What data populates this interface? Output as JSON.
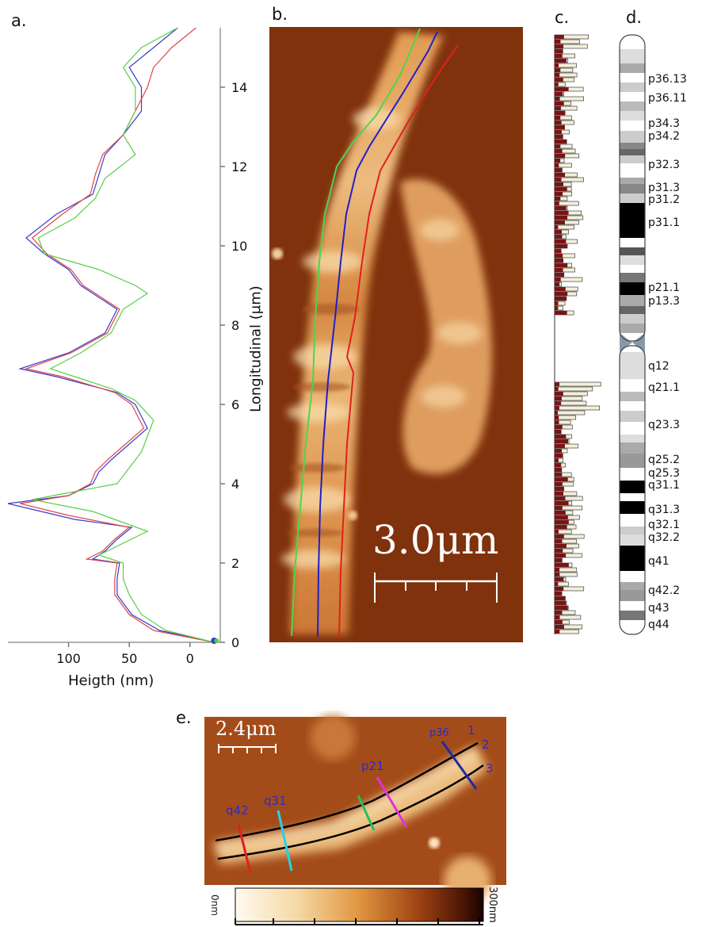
{
  "panels": {
    "a": "a.",
    "b": "b.",
    "c": "c.",
    "d": "d.",
    "e": "e."
  },
  "chart_data": {
    "type": "line",
    "xlabel": "Heigth (nm)",
    "ylabel": "Longitudinal (μm)",
    "x_reversed": true,
    "xlim": [
      150,
      -25
    ],
    "ylim": [
      0,
      15.5
    ],
    "xticks": [
      "100",
      "50",
      "0"
    ],
    "yticks": [
      "0",
      "2",
      "4",
      "6",
      "8",
      "10",
      "12",
      "14"
    ],
    "series": [
      {
        "color": "#3a3acc",
        "points": [
          [
            -20,
            0
          ],
          [
            25,
            0.3
          ],
          [
            48,
            0.7
          ],
          [
            60,
            1.2
          ],
          [
            60,
            1.6
          ],
          [
            58,
            2.0
          ],
          [
            80,
            2.1
          ],
          [
            70,
            2.3
          ],
          [
            60,
            2.6
          ],
          [
            48,
            2.9
          ],
          [
            95,
            3.1
          ],
          [
            150,
            3.5
          ],
          [
            100,
            3.7
          ],
          [
            80,
            4.0
          ],
          [
            75,
            4.3
          ],
          [
            65,
            4.6
          ],
          [
            35,
            5.4
          ],
          [
            45,
            6.0
          ],
          [
            60,
            6.3
          ],
          [
            110,
            6.7
          ],
          [
            140,
            6.9
          ],
          [
            100,
            7.3
          ],
          [
            70,
            7.8
          ],
          [
            60,
            8.4
          ],
          [
            80,
            8.8
          ],
          [
            90,
            9.0
          ],
          [
            100,
            9.4
          ],
          [
            120,
            9.8
          ],
          [
            135,
            10.2
          ],
          [
            110,
            10.8
          ],
          [
            80,
            11.3
          ],
          [
            75,
            11.8
          ],
          [
            70,
            12.3
          ],
          [
            55,
            12.8
          ],
          [
            40,
            13.4
          ],
          [
            40,
            14.0
          ],
          [
            50,
            14.5
          ],
          [
            30,
            15.0
          ],
          [
            10,
            15.5
          ]
        ]
      },
      {
        "color": "#e04545",
        "points": [
          [
            -20,
            0
          ],
          [
            30,
            0.3
          ],
          [
            50,
            0.7
          ],
          [
            62,
            1.2
          ],
          [
            62,
            1.6
          ],
          [
            60,
            2.0
          ],
          [
            85,
            2.1
          ],
          [
            72,
            2.3
          ],
          [
            62,
            2.6
          ],
          [
            50,
            2.9
          ],
          [
            100,
            3.2
          ],
          [
            140,
            3.5
          ],
          [
            100,
            3.7
          ],
          [
            82,
            4.0
          ],
          [
            78,
            4.3
          ],
          [
            68,
            4.6
          ],
          [
            38,
            5.4
          ],
          [
            48,
            6.0
          ],
          [
            62,
            6.3
          ],
          [
            105,
            6.7
          ],
          [
            135,
            6.9
          ],
          [
            98,
            7.3
          ],
          [
            68,
            7.8
          ],
          [
            58,
            8.4
          ],
          [
            78,
            8.8
          ],
          [
            88,
            9.0
          ],
          [
            98,
            9.4
          ],
          [
            118,
            9.8
          ],
          [
            130,
            10.2
          ],
          [
            105,
            10.8
          ],
          [
            82,
            11.3
          ],
          [
            78,
            11.8
          ],
          [
            72,
            12.3
          ],
          [
            55,
            12.8
          ],
          [
            45,
            13.4
          ],
          [
            35,
            14.0
          ],
          [
            30,
            14.5
          ],
          [
            15,
            15.0
          ],
          [
            -5,
            15.5
          ]
        ]
      },
      {
        "color": "#55d045",
        "points": [
          [
            -20,
            0
          ],
          [
            20,
            0.3
          ],
          [
            40,
            0.7
          ],
          [
            50,
            1.2
          ],
          [
            55,
            1.6
          ],
          [
            55,
            2.0
          ],
          [
            75,
            2.2
          ],
          [
            55,
            2.5
          ],
          [
            35,
            2.8
          ],
          [
            80,
            3.3
          ],
          [
            130,
            3.6
          ],
          [
            95,
            3.8
          ],
          [
            60,
            4.0
          ],
          [
            50,
            4.4
          ],
          [
            40,
            4.8
          ],
          [
            30,
            5.6
          ],
          [
            45,
            6.1
          ],
          [
            65,
            6.4
          ],
          [
            95,
            6.7
          ],
          [
            115,
            6.9
          ],
          [
            90,
            7.3
          ],
          [
            65,
            7.8
          ],
          [
            55,
            8.4
          ],
          [
            35,
            8.8
          ],
          [
            45,
            9.0
          ],
          [
            75,
            9.4
          ],
          [
            120,
            9.8
          ],
          [
            125,
            10.2
          ],
          [
            95,
            10.7
          ],
          [
            78,
            11.2
          ],
          [
            70,
            11.7
          ],
          [
            45,
            12.3
          ],
          [
            55,
            12.8
          ],
          [
            45,
            13.4
          ],
          [
            45,
            14.0
          ],
          [
            55,
            14.5
          ],
          [
            40,
            15.0
          ],
          [
            10,
            15.5
          ]
        ]
      }
    ]
  },
  "panel_b": {
    "scalebar_text": "3.0μm"
  },
  "panel_d": {
    "labels": [
      "p36.13",
      "p36.11",
      "p34.3",
      "p34.2",
      "p32.3",
      "p31.3",
      "p31.2",
      "p31.1",
      "p21.1",
      "p13.3",
      "q12",
      "q21.1",
      "q23.3",
      "q25.2",
      "q25.3",
      "q31.1",
      "q31.3",
      "q32.1",
      "q32.2",
      "q41",
      "q42.2",
      "q43",
      "q44"
    ]
  },
  "panel_e": {
    "scalebar_text": "2.4μm",
    "markers": {
      "p36": "p36",
      "n1": "1",
      "n2": "2",
      "n3": "3",
      "p21": "p21",
      "q31": "q31",
      "q42": "q42"
    },
    "colorbar_min": "0nm",
    "colorbar_max": "300nm"
  }
}
